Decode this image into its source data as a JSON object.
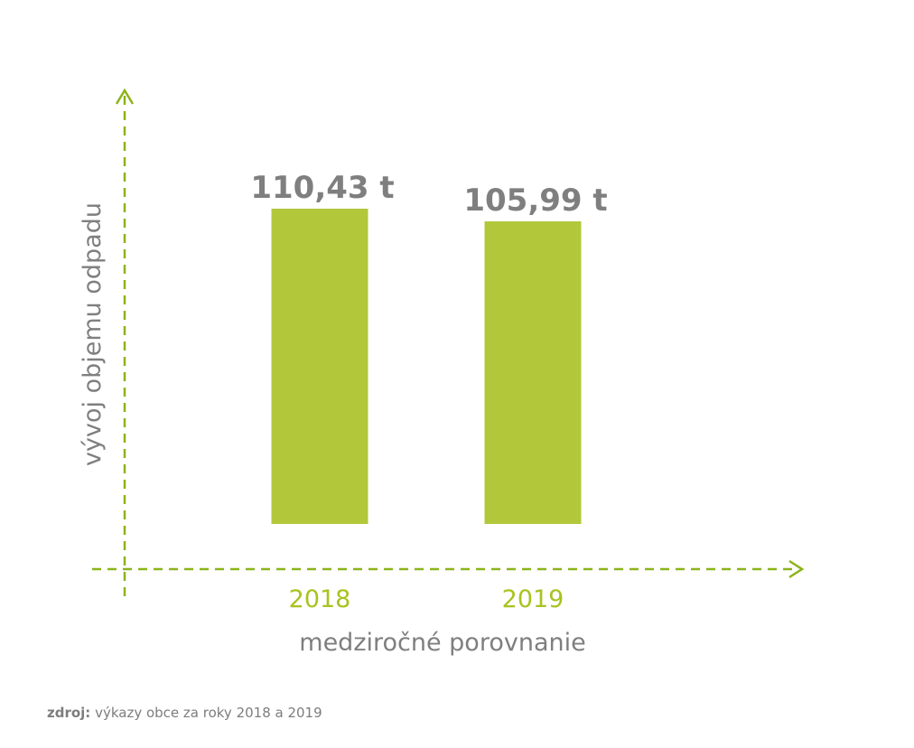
{
  "chart_data": {
    "type": "bar",
    "categories": [
      "2018",
      "2019"
    ],
    "values": [
      110.43,
      105.99
    ],
    "value_labels": [
      "110,43 t",
      "105,99 t"
    ],
    "xlabel": "medziročné porovnanie",
    "ylabel": "vývoj objemu odpadu",
    "ylim": [
      0,
      125
    ],
    "grid": false,
    "colors": {
      "bar": "#b2c83a",
      "axis": "#8db31a",
      "category_text": "#a9c21f",
      "label_text": "#7f7f7f"
    }
  },
  "source": {
    "prefix": "zdroj:",
    "text": "výkazy obce za roky 2018 a 2019"
  }
}
